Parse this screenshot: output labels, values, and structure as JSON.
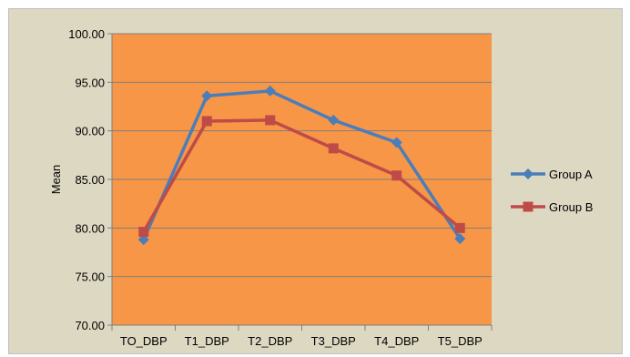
{
  "chart_data": {
    "type": "line",
    "title": "",
    "xlabel": "",
    "ylabel": "Mean",
    "categories": [
      "TO_DBP",
      "T1_DBP",
      "T2_DBP",
      "T3_DBP",
      "T4_DBP",
      "T5_DBP"
    ],
    "ylim": [
      70,
      100
    ],
    "yticks": [
      "70.00",
      "75.00",
      "80.00",
      "85.00",
      "90.00",
      "95.00",
      "100.00"
    ],
    "grid": true,
    "legend_position": "right",
    "series": [
      {
        "name": "Group A",
        "values": [
          78.8,
          93.6,
          94.1,
          91.1,
          88.8,
          78.9
        ],
        "color": "#4a7ebb",
        "marker": "diamond"
      },
      {
        "name": "Group B",
        "values": [
          79.6,
          91.0,
          91.1,
          88.2,
          85.4,
          80.0
        ],
        "color": "#be4b48",
        "marker": "square"
      }
    ],
    "plot_background": "#f79646",
    "chart_background": "#ddd8c2"
  }
}
